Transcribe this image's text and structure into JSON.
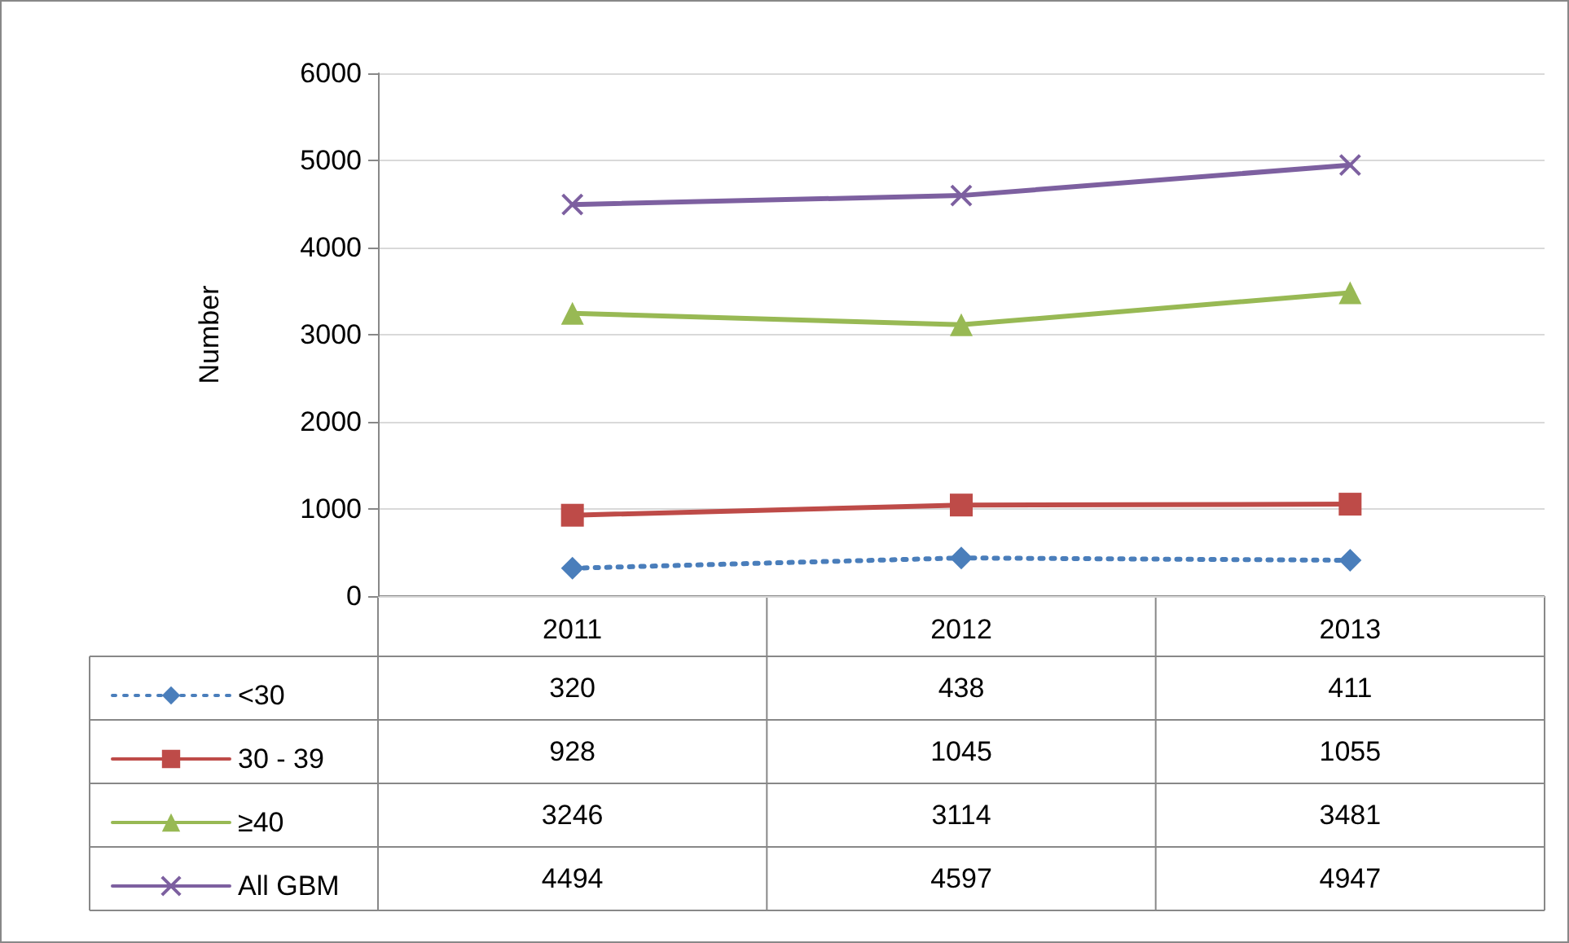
{
  "chart_data": {
    "type": "line",
    "ylabel": "Number",
    "categories": [
      "2011",
      "2012",
      "2013"
    ],
    "series": [
      {
        "name": "<30",
        "color": "#4a7ebb",
        "values": [
          320,
          438,
          411
        ],
        "marker": "diamond",
        "line_style": "dotted"
      },
      {
        "name": "30 - 39",
        "color": "#be4b48",
        "values": [
          928,
          1045,
          1055
        ],
        "marker": "square",
        "line_style": "solid"
      },
      {
        "name": "≥40",
        "color": "#98b954",
        "values": [
          3246,
          3114,
          3481
        ],
        "marker": "triangle",
        "line_style": "solid"
      },
      {
        "name": "All GBM",
        "color": "#7d60a0",
        "values": [
          4494,
          4597,
          4947
        ],
        "marker": "cross",
        "line_style": "solid"
      }
    ],
    "ylim": [
      0,
      6000
    ],
    "yticks": [
      0,
      1000,
      2000,
      3000,
      4000,
      5000,
      6000
    ],
    "grid": "y",
    "legend": "bottom left",
    "data_labels": true
  }
}
